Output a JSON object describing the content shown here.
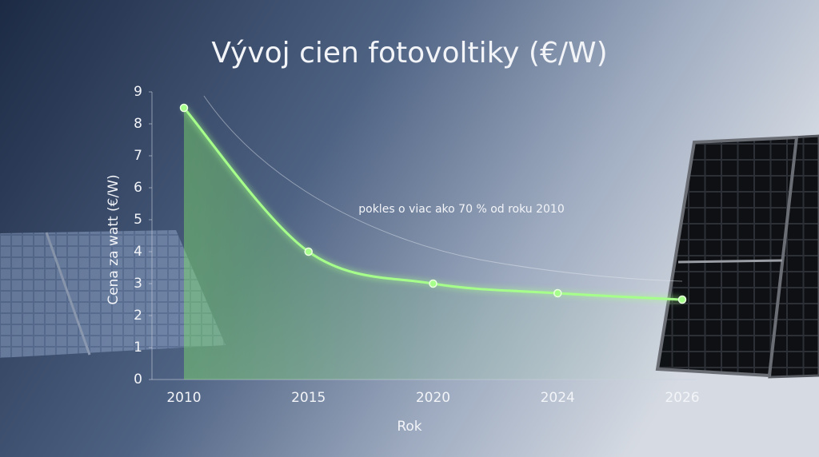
{
  "chart_data": {
    "type": "line",
    "title": "Vývoj cien fotovoltiky (€/W)",
    "x_label": "Rok",
    "y_label": "Cena za watt (€/W)",
    "categories": [
      "2010",
      "2015",
      "2020",
      "2024",
      "2026"
    ],
    "series": [
      {
        "name": "Cena za watt",
        "color": "#a6ff8a",
        "values": [
          8.5,
          4.0,
          3.0,
          2.7,
          2.5
        ]
      }
    ],
    "ylim": [
      0,
      9
    ],
    "yticks": [
      0,
      1,
      2,
      3,
      4,
      5,
      6,
      7,
      8,
      9
    ],
    "annotation": "pokles o viac ako 70 % od roku 2010"
  }
}
